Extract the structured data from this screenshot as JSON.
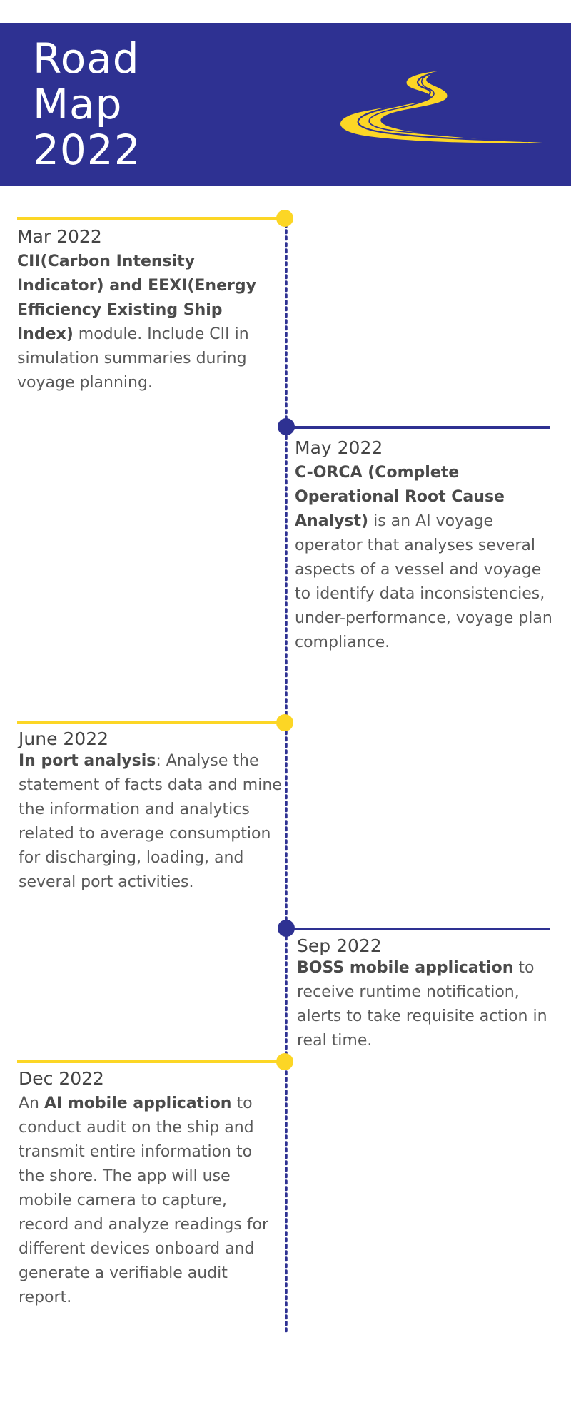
{
  "header": {
    "title_lines": [
      "Road",
      "Map",
      "2022"
    ],
    "icon": "road-icon",
    "colors": {
      "background": "#2e3192",
      "road": "#fcd625",
      "title": "#ffffff"
    }
  },
  "timeline": {
    "colors": {
      "yellow": "#fcd625",
      "navy": "#2e3192"
    },
    "entries": [
      {
        "date": "Mar 2022",
        "side": "left",
        "color": "yellow",
        "prefix": "",
        "bold": "CII(Carbon Intensity Indicator) and EEXI(Energy Efficiency Existing Ship Index)",
        "text": " module. Include CII in simulation summaries during voyage planning."
      },
      {
        "date": "May 2022",
        "side": "right",
        "color": "navy",
        "prefix": "",
        "bold": "C-ORCA (Complete Operational Root Cause Analyst)",
        "text": " is an AI voyage operator that analyses several aspects of a vessel and voyage to identify data inconsistencies, under-performance, voyage plan compliance."
      },
      {
        "date": "June 2022",
        "side": "left",
        "color": "yellow",
        "prefix": "",
        "bold": "In port analysis",
        "text": ": Analyse the statement of facts data and mine the information and analytics related to average consumption for discharging, loading, and several port activities."
      },
      {
        "date": "Sep 2022",
        "side": "right",
        "color": "navy",
        "prefix": "",
        "bold": "BOSS mobile application",
        "text": " to receive runtime notification, alerts to take requisite action in real time."
      },
      {
        "date": "Dec 2022",
        "side": "left",
        "color": "yellow",
        "prefix": "An ",
        "bold": "AI mobile application",
        "text": " to conduct audit on the ship and transmit entire information to the shore. The app will use mobile camera to capture, record and analyze readings for different devices onboard and generate a verifiable audit report."
      }
    ]
  }
}
